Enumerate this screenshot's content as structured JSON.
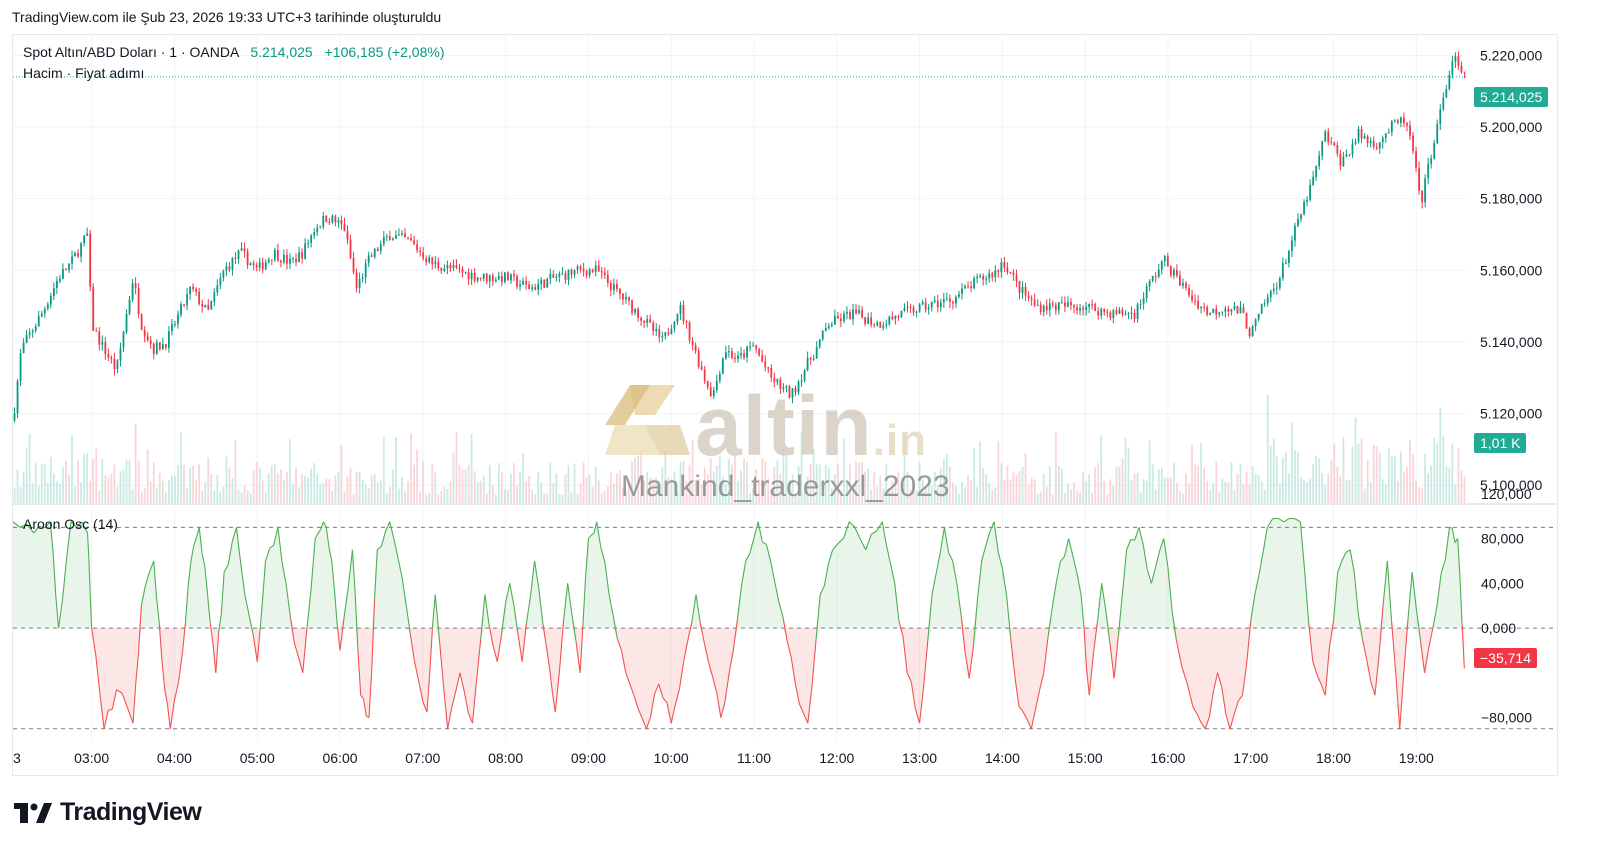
{
  "header": {
    "text": "TradingView.com ile Şub 23, 2026 19:33 UTC+3 tarihinde oluşturuldu"
  },
  "legend": {
    "symbol": "Spot Altın/ABD Doları · 1 · OANDA",
    "price": "5.214,025",
    "change": "+106,185 (+2,08%)",
    "volume_row": "Hacim · Fiyat adımı",
    "aroon": "Aroon Osc (14)"
  },
  "badges": {
    "last_price": "5.214,025",
    "volume": "1,01 K",
    "aroon": "−35,714"
  },
  "colors": {
    "up": "#089981",
    "down": "#f23645",
    "aroon_pos": "#4caf50",
    "aroon_neg": "#f05350",
    "badge_green": "#22ab94",
    "text": "#131722"
  },
  "watermark": {
    "brand": "altin",
    "tld": ".in",
    "author": "Mankind_traderxxl_2023"
  },
  "footer": {
    "brand": "TradingView"
  },
  "chart_data": [
    {
      "type": "candlestick",
      "title": "Spot Altın/ABD Doları · 1 · OANDA",
      "x_ticks": [
        "3",
        "03:00",
        "04:00",
        "05:00",
        "06:00",
        "07:00",
        "08:00",
        "09:00",
        "10:00",
        "11:00",
        "12:00",
        "13:00",
        "14:00",
        "15:00",
        "16:00",
        "17:00",
        "18:00",
        "19:00"
      ],
      "y_ticks": [
        "5.220,000",
        "5.200,000",
        "5.180,000",
        "5.160,000",
        "5.140,000",
        "5.120,000",
        "5.100,000"
      ],
      "y_tick_values": [
        5220,
        5200,
        5180,
        5160,
        5140,
        5120,
        5100
      ],
      "ylim": [
        5095,
        5226
      ],
      "x_hours_range": [
        2.05,
        19.6
      ],
      "price_path": [
        [
          2.05,
          5118
        ],
        [
          2.15,
          5138
        ],
        [
          2.4,
          5148
        ],
        [
          2.6,
          5158
        ],
        [
          2.75,
          5162
        ],
        [
          2.95,
          5170
        ],
        [
          3.0,
          5145
        ],
        [
          3.1,
          5140
        ],
        [
          3.3,
          5132
        ],
        [
          3.5,
          5158
        ],
        [
          3.6,
          5145
        ],
        [
          3.75,
          5138
        ],
        [
          3.9,
          5140
        ],
        [
          4.0,
          5145
        ],
        [
          4.2,
          5155
        ],
        [
          4.4,
          5148
        ],
        [
          4.6,
          5160
        ],
        [
          4.8,
          5165
        ],
        [
          5.0,
          5160
        ],
        [
          5.2,
          5165
        ],
        [
          5.4,
          5162
        ],
        [
          5.55,
          5165
        ],
        [
          5.7,
          5172
        ],
        [
          5.85,
          5175
        ],
        [
          6.05,
          5172
        ],
        [
          6.2,
          5155
        ],
        [
          6.35,
          5163
        ],
        [
          6.6,
          5170
        ],
        [
          6.85,
          5168
        ],
        [
          7.1,
          5162
        ],
        [
          7.4,
          5160
        ],
        [
          7.7,
          5158
        ],
        [
          8.0,
          5158
        ],
        [
          8.3,
          5155
        ],
        [
          8.6,
          5158
        ],
        [
          8.9,
          5160
        ],
        [
          9.1,
          5160
        ],
        [
          9.3,
          5155
        ],
        [
          9.6,
          5148
        ],
        [
          9.9,
          5140
        ],
        [
          10.1,
          5150
        ],
        [
          10.25,
          5140
        ],
        [
          10.4,
          5130
        ],
        [
          10.5,
          5125
        ],
        [
          10.65,
          5138
        ],
        [
          10.8,
          5135
        ],
        [
          11.0,
          5139
        ],
        [
          11.2,
          5130
        ],
        [
          11.45,
          5125
        ],
        [
          11.6,
          5132
        ],
        [
          11.75,
          5138
        ],
        [
          11.9,
          5145
        ],
        [
          12.2,
          5148
        ],
        [
          12.5,
          5145
        ],
        [
          12.8,
          5148
        ],
        [
          13.1,
          5150
        ],
        [
          13.4,
          5152
        ],
        [
          13.7,
          5157
        ],
        [
          13.95,
          5160
        ],
        [
          14.0,
          5163
        ],
        [
          14.2,
          5155
        ],
        [
          14.4,
          5150
        ],
        [
          14.7,
          5150
        ],
        [
          15.0,
          5150
        ],
        [
          15.3,
          5148
        ],
        [
          15.6,
          5148
        ],
        [
          15.75,
          5155
        ],
        [
          15.95,
          5163
        ],
        [
          16.1,
          5158
        ],
        [
          16.3,
          5152
        ],
        [
          16.5,
          5148
        ],
        [
          16.7,
          5150
        ],
        [
          16.9,
          5148
        ],
        [
          17.0,
          5142
        ],
        [
          17.15,
          5150
        ],
        [
          17.35,
          5158
        ],
        [
          17.55,
          5172
        ],
        [
          17.75,
          5185
        ],
        [
          17.9,
          5198
        ],
        [
          18.1,
          5190
        ],
        [
          18.3,
          5198
        ],
        [
          18.5,
          5195
        ],
        [
          18.7,
          5200
        ],
        [
          18.85,
          5202
        ],
        [
          18.95,
          5195
        ],
        [
          19.05,
          5178
        ],
        [
          19.2,
          5195
        ],
        [
          19.35,
          5210
        ],
        [
          19.45,
          5220
        ],
        [
          19.55,
          5214
        ]
      ],
      "last_price": 5214.025,
      "volume_badge": "1,01 K"
    },
    {
      "type": "line",
      "title": "Aroon Osc (14)",
      "y_ticks": [
        "120,000",
        "80,000",
        "40,000",
        "0,000",
        "−80,000"
      ],
      "y_tick_values": [
        120,
        80,
        40,
        0,
        -80
      ],
      "levels": [
        90,
        0,
        -90
      ],
      "ylim": [
        -100,
        110
      ],
      "x_hours_range": [
        2.05,
        19.6
      ],
      "series": [
        {
          "values": [
            [
              2.05,
              95
            ],
            [
              2.3,
              85
            ],
            [
              2.5,
              95
            ],
            [
              2.6,
              0
            ],
            [
              2.75,
              95
            ],
            [
              2.95,
              85
            ],
            [
              3.0,
              0
            ],
            [
              3.15,
              -90
            ],
            [
              3.3,
              -55
            ],
            [
              3.5,
              -85
            ],
            [
              3.6,
              20
            ],
            [
              3.75,
              60
            ],
            [
              3.85,
              -30
            ],
            [
              3.95,
              -90
            ],
            [
              4.1,
              -20
            ],
            [
              4.2,
              60
            ],
            [
              4.3,
              90
            ],
            [
              4.4,
              30
            ],
            [
              4.5,
              -40
            ],
            [
              4.6,
              50
            ],
            [
              4.75,
              90
            ],
            [
              4.85,
              30
            ],
            [
              5.0,
              -30
            ],
            [
              5.1,
              60
            ],
            [
              5.25,
              90
            ],
            [
              5.4,
              10
            ],
            [
              5.55,
              -40
            ],
            [
              5.7,
              80
            ],
            [
              5.8,
              95
            ],
            [
              5.9,
              60
            ],
            [
              6.0,
              -20
            ],
            [
              6.15,
              70
            ],
            [
              6.25,
              -60
            ],
            [
              6.35,
              -80
            ],
            [
              6.45,
              70
            ],
            [
              6.6,
              95
            ],
            [
              6.75,
              45
            ],
            [
              6.9,
              -30
            ],
            [
              7.05,
              -75
            ],
            [
              7.15,
              30
            ],
            [
              7.3,
              -90
            ],
            [
              7.45,
              -40
            ],
            [
              7.6,
              -85
            ],
            [
              7.75,
              30
            ],
            [
              7.9,
              -30
            ],
            [
              8.05,
              40
            ],
            [
              8.2,
              -30
            ],
            [
              8.35,
              60
            ],
            [
              8.5,
              -20
            ],
            [
              8.6,
              -75
            ],
            [
              8.75,
              40
            ],
            [
              8.9,
              -40
            ],
            [
              9.0,
              80
            ],
            [
              9.1,
              95
            ],
            [
              9.25,
              30
            ],
            [
              9.4,
              -20
            ],
            [
              9.55,
              -60
            ],
            [
              9.7,
              -90
            ],
            [
              9.85,
              -50
            ],
            [
              10.0,
              -85
            ],
            [
              10.15,
              -30
            ],
            [
              10.3,
              30
            ],
            [
              10.45,
              -30
            ],
            [
              10.6,
              -80
            ],
            [
              10.75,
              -20
            ],
            [
              10.9,
              60
            ],
            [
              11.05,
              95
            ],
            [
              11.2,
              60
            ],
            [
              11.35,
              10
            ],
            [
              11.5,
              -50
            ],
            [
              11.65,
              -85
            ],
            [
              11.8,
              30
            ],
            [
              11.95,
              70
            ],
            [
              12.15,
              95
            ],
            [
              12.35,
              70
            ],
            [
              12.55,
              95
            ],
            [
              12.7,
              40
            ],
            [
              12.85,
              -40
            ],
            [
              13.0,
              -85
            ],
            [
              13.15,
              30
            ],
            [
              13.3,
              90
            ],
            [
              13.45,
              40
            ],
            [
              13.6,
              -45
            ],
            [
              13.75,
              60
            ],
            [
              13.9,
              95
            ],
            [
              14.05,
              30
            ],
            [
              14.2,
              -70
            ],
            [
              14.35,
              -90
            ],
            [
              14.5,
              -40
            ],
            [
              14.65,
              40
            ],
            [
              14.8,
              80
            ],
            [
              14.95,
              30
            ],
            [
              15.05,
              -60
            ],
            [
              15.2,
              40
            ],
            [
              15.35,
              -45
            ],
            [
              15.5,
              70
            ],
            [
              15.65,
              90
            ],
            [
              15.8,
              40
            ],
            [
              15.95,
              80
            ],
            [
              16.1,
              -10
            ],
            [
              16.3,
              -70
            ],
            [
              16.45,
              -90
            ],
            [
              16.6,
              -40
            ],
            [
              16.75,
              -90
            ],
            [
              16.9,
              -60
            ],
            [
              17.05,
              30
            ],
            [
              17.2,
              90
            ],
            [
              17.4,
              95
            ],
            [
              17.6,
              95
            ],
            [
              17.75,
              -30
            ],
            [
              17.9,
              -60
            ],
            [
              18.05,
              50
            ],
            [
              18.2,
              70
            ],
            [
              18.35,
              -10
            ],
            [
              18.5,
              -60
            ],
            [
              18.65,
              60
            ],
            [
              18.8,
              -90
            ],
            [
              18.95,
              50
            ],
            [
              19.1,
              -40
            ],
            [
              19.25,
              20
            ],
            [
              19.4,
              90
            ],
            [
              19.5,
              80
            ],
            [
              19.58,
              -36
            ]
          ]
        }
      ],
      "last_value": -35.714
    }
  ]
}
